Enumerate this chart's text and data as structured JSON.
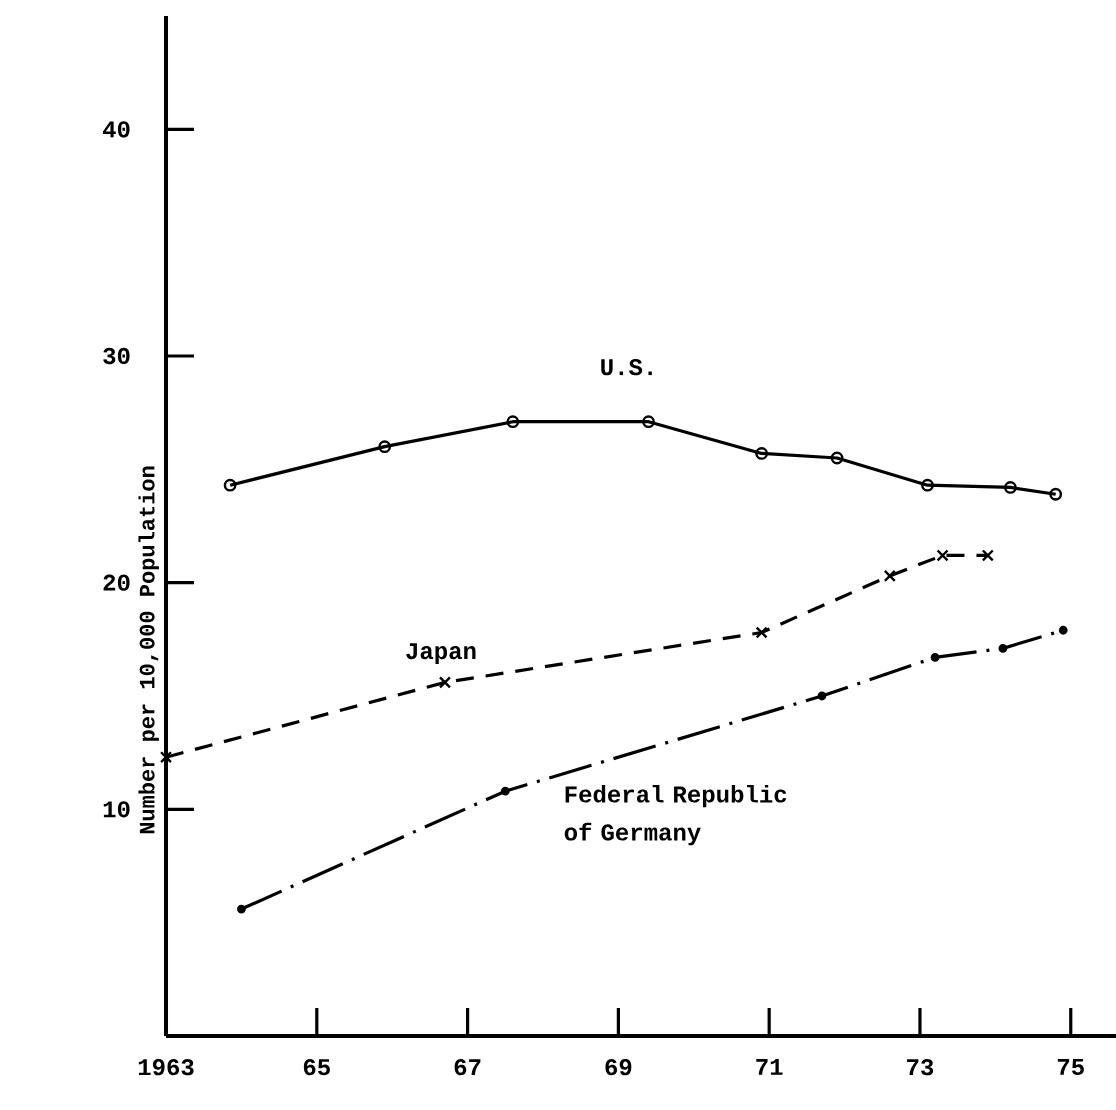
{
  "chart_data": {
    "type": "line",
    "ylabel": "Number per 10,000 Population",
    "xlim": [
      1963,
      1975.6
    ],
    "ylim": [
      0,
      45
    ],
    "xticks": [
      {
        "value": 1963,
        "label": "1963"
      },
      {
        "value": 1965,
        "label": "65"
      },
      {
        "value": 1967,
        "label": "67"
      },
      {
        "value": 1969,
        "label": "69"
      },
      {
        "value": 1971,
        "label": "71"
      },
      {
        "value": 1973,
        "label": "73"
      },
      {
        "value": 1975,
        "label": "75"
      }
    ],
    "yticks": [
      10,
      20,
      30,
      40
    ],
    "series": [
      {
        "name": "U.S.",
        "color": "#000000",
        "marker": "circle",
        "line_style": "solid",
        "x": [
          1963.85,
          1965.9,
          1967.6,
          1969.4,
          1970.9,
          1971.9,
          1973.1,
          1974.2,
          1974.8
        ],
        "values": [
          24.3,
          26.0,
          27.1,
          27.1,
          25.7,
          25.5,
          24.3,
          24.2,
          23.9
        ]
      },
      {
        "name": "Japan",
        "color": "#000000",
        "marker": "cross",
        "line_style": "dashed",
        "x": [
          1963.0,
          1966.7,
          1970.9,
          1972.6,
          1973.3,
          1973.9
        ],
        "values": [
          12.3,
          15.6,
          17.8,
          20.3,
          21.2,
          21.2
        ]
      },
      {
        "name": "Federal Republic of Germany",
        "color": "#000000",
        "marker": "dot",
        "line_style": "dashdot",
        "x": [
          1964.0,
          1967.5,
          1971.7,
          1973.2,
          1974.1,
          1974.9
        ],
        "values": [
          5.6,
          10.8,
          15.0,
          16.7,
          17.1,
          17.9
        ]
      }
    ]
  }
}
